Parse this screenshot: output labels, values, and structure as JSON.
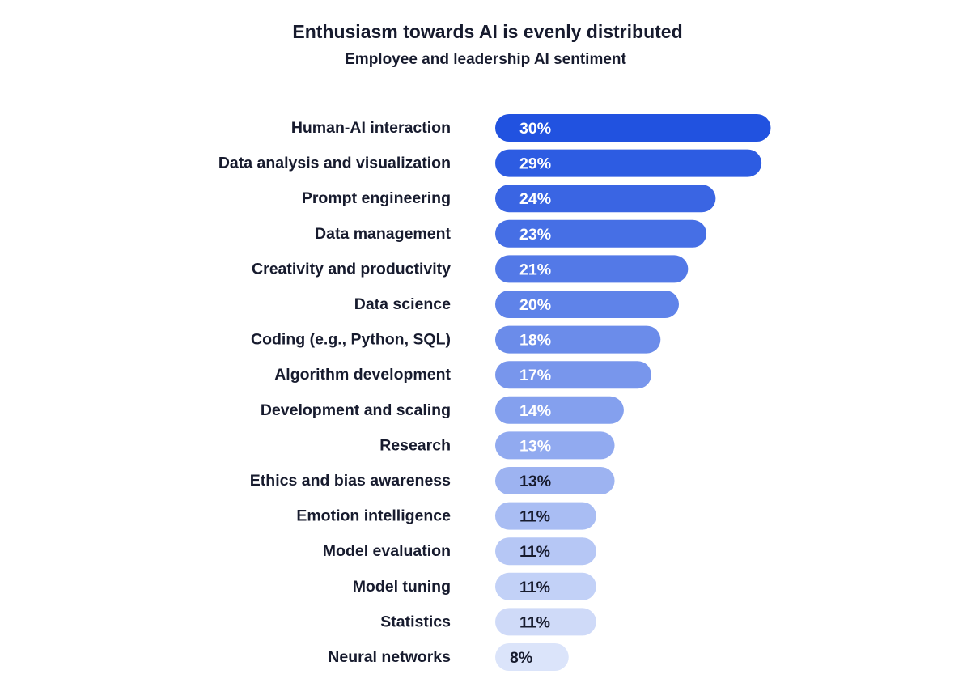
{
  "chart_data": {
    "type": "bar",
    "orientation": "horizontal",
    "title": "Enthusiasm towards AI is evenly distributed",
    "subtitle": "Employee and leadership AI sentiment",
    "categories": [
      "Human-AI interaction",
      "Data analysis and visualization",
      "Prompt engineering",
      "Data management",
      "Creativity and productivity",
      "Data science",
      "Coding (e.g., Python, SQL)",
      "Algorithm development",
      "Development and scaling",
      "Research",
      "Ethics and bias awareness",
      "Emotion intelligence",
      "Model evaluation",
      "Model tuning",
      "Statistics",
      "Neural networks"
    ],
    "values": [
      30,
      29,
      24,
      23,
      21,
      20,
      18,
      17,
      14,
      13,
      13,
      11,
      11,
      11,
      11,
      8
    ],
    "value_labels": [
      "30%",
      "29%",
      "24%",
      "23%",
      "21%",
      "20%",
      "18%",
      "17%",
      "14%",
      "13%",
      "13%",
      "11%",
      "11%",
      "11%",
      "11%",
      "8%"
    ],
    "unit": "%",
    "grid": false,
    "legend": "none",
    "colors": {
      "bar_start": "#2152e0",
      "bar_end": "#dbe4fa",
      "label_light": "#ffffff",
      "label_dark": "#171b2e"
    }
  }
}
